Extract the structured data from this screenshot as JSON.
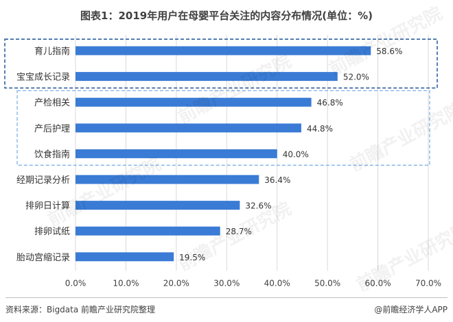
{
  "title": "图表1：2019年用户在母婴平台关注的内容分布情况(单位：%)",
  "footer": {
    "source": "资料来源：Bigdata 前瞻产业研究院整理",
    "brand": "@前瞻经济学人APP"
  },
  "watermark": {
    "text": "前瞻产业研究院"
  },
  "colors": {
    "bar": "#3a7bd5",
    "box_dark": "#2e5f9e",
    "box_light": "#7fb0e6",
    "grid": "#d9d9d9"
  },
  "chart_data": {
    "type": "bar",
    "orientation": "horizontal",
    "categories": [
      "育儿指南",
      "宝宝成长记录",
      "产检相关",
      "产后护理",
      "饮食指南",
      "经期记录分析",
      "排卵日计算",
      "排卵试纸",
      "胎动宫缩记录"
    ],
    "values": [
      58.6,
      52.0,
      46.8,
      44.8,
      40.0,
      36.4,
      32.6,
      28.7,
      19.5
    ],
    "value_labels": [
      "58.6%",
      "52.0%",
      "46.8%",
      "44.8%",
      "40.0%",
      "36.4%",
      "32.6%",
      "28.7%",
      "19.5%"
    ],
    "xlim": [
      0,
      70
    ],
    "xticks": [
      0,
      10,
      20,
      30,
      40,
      50,
      60,
      70
    ],
    "xtick_labels": [
      "0.0%",
      "10.0%",
      "20.0%",
      "30.0%",
      "40.0%",
      "50.0%",
      "60.0%",
      "70.0%"
    ],
    "grid": true,
    "legend": "none",
    "groups": [
      {
        "style": "dark",
        "members": [
          "育儿指南",
          "宝宝成长记录"
        ]
      },
      {
        "style": "light",
        "members": [
          "产检相关",
          "产后护理",
          "饮食指南"
        ]
      }
    ]
  }
}
